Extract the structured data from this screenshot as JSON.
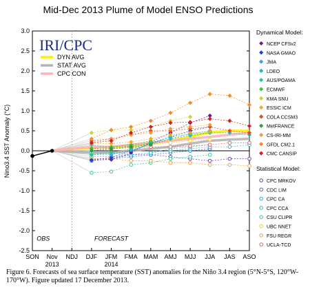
{
  "chart_data": {
    "type": "line",
    "title": "Mid-Dec 2013 Plume of Model ENSO Predictions",
    "ylabel": "Nino3.4 SST Anomaly (°C)",
    "logo": "IRI/CPC",
    "ylim": [
      -2.5,
      3.0
    ],
    "yticks": [
      "3.0",
      "2.5",
      "2.0",
      "1.5",
      "1.0",
      "0.5",
      "0.0",
      "-0.5",
      "-1.0",
      "-1.5",
      "-2.0",
      "-2.5"
    ],
    "grid": false,
    "categories": [
      "SON",
      "Nov",
      "NDJ",
      "DJF",
      "JFM",
      "FMA",
      "MAM",
      "AMJ",
      "MJJ",
      "JJA",
      "JAS",
      "ASO"
    ],
    "category_years": {
      "Nov": "2013",
      "JFM": "2014"
    },
    "region_labels": {
      "obs": "OBS",
      "forecast": "FORECAST"
    },
    "observed": [
      -0.13,
      0.0
    ],
    "averages": [
      {
        "name": "DYN AVG",
        "color": "#ffee00",
        "values": [
          0.08,
          0.08,
          0.12,
          0.18,
          0.25,
          0.35,
          0.46,
          0.5,
          0.5
        ]
      },
      {
        "name": "STAT AVG",
        "color": "#b3b3b3",
        "values": [
          -0.05,
          -0.05,
          0.0,
          0.05,
          0.1,
          0.18,
          0.25,
          0.28,
          0.3
        ]
      },
      {
        "name": "CPC CON",
        "color": "#ffb3b3",
        "values": [
          0.1,
          0.1,
          0.15,
          0.2,
          0.25,
          0.3,
          0.35,
          0.4,
          0.45
        ]
      }
    ],
    "dynamical_title": "Dynamical Model:",
    "statistical_title": "Statistical Model:",
    "dynamical_series": [
      {
        "name": "NCEP CFSv2",
        "color": "#6a1b9a",
        "values": [
          -0.23,
          -0.22,
          -0.05,
          0.22,
          0.45,
          0.7,
          0.88,
          null,
          null
        ]
      },
      {
        "name": "NASA GMAO",
        "color": "#1a3fd6",
        "values": [
          -0.23,
          -0.17,
          0.0,
          0.18,
          0.35,
          0.5,
          0.6,
          null,
          null
        ]
      },
      {
        "name": "JMA",
        "color": "#2fa4e7",
        "values": [
          -0.1,
          -0.1,
          0.02,
          0.15,
          0.3,
          0.42,
          0.5,
          null,
          null
        ]
      },
      {
        "name": "LDEO",
        "color": "#17b8d0",
        "values": [
          0.15,
          0.08,
          0.12,
          0.2,
          0.35,
          0.42,
          0.45,
          0.45,
          0.4
        ]
      },
      {
        "name": "AUS/POAMA",
        "color": "#18c9a6",
        "values": [
          -0.1,
          -0.05,
          0.05,
          0.2,
          0.3,
          0.38,
          0.45,
          null,
          null
        ]
      },
      {
        "name": "ECMWF",
        "color": "#37c837",
        "values": [
          0.05,
          0.1,
          0.15,
          0.25,
          null,
          null,
          null,
          null,
          null
        ]
      },
      {
        "name": "KMA SNU",
        "color": "#c8d62a",
        "values": [
          0.45,
          0.52,
          0.52,
          0.6,
          0.75,
          0.85,
          null,
          null,
          null
        ]
      },
      {
        "name": "ESSIC ICM",
        "color": "#f5a623",
        "values": [
          0.18,
          0.18,
          0.22,
          0.3,
          0.4,
          0.45,
          0.48,
          null,
          null
        ]
      },
      {
        "name": "COLA CCSM3",
        "color": "#e34a1a",
        "values": [
          0.25,
          0.3,
          0.4,
          0.5,
          0.5,
          0.55,
          0.6,
          0.5,
          0.45
        ]
      },
      {
        "name": "MetFRANCE",
        "color": "#2e9e2e",
        "values": [
          0.0,
          0.05,
          0.1,
          0.15,
          null,
          null,
          null,
          null,
          null
        ]
      },
      {
        "name": "CS-IRI-MM",
        "color": "#f09a3a",
        "values": [
          0.2,
          0.3,
          0.4,
          0.45,
          0.55,
          0.6,
          0.65,
          null,
          null
        ]
      },
      {
        "name": "GFDL CM2.1",
        "color": "#f28c28",
        "values": [
          0.3,
          0.52,
          0.6,
          0.75,
          0.95,
          1.2,
          1.42,
          1.38,
          1.15
        ]
      },
      {
        "name": "CMC CANSIP",
        "color": "#d62020",
        "values": [
          0.2,
          0.25,
          0.45,
          0.6,
          0.7,
          0.72,
          0.8,
          0.75,
          0.62
        ]
      }
    ],
    "statistical_series": [
      {
        "name": "CPC MRKOV",
        "color": "#6a3fb5",
        "values": [
          -0.2,
          -0.2,
          -0.1,
          -0.1,
          -0.15,
          -0.2,
          -0.25,
          -0.2,
          -0.2
        ]
      },
      {
        "name": "CDC LIM",
        "color": "#3a6be0",
        "values": [
          -0.25,
          -0.2,
          -0.15,
          -0.1,
          -0.05,
          0.0,
          0.05,
          null,
          null
        ]
      },
      {
        "name": "CPC CA",
        "color": "#2fb5e0",
        "values": [
          -0.05,
          -0.05,
          -0.1,
          -0.05,
          0.0,
          0.05,
          0.1,
          0.1,
          0.15
        ]
      },
      {
        "name": "CPC CCA",
        "color": "#22c0b0",
        "values": [
          -0.15,
          -0.15,
          -0.1,
          -0.05,
          0.05,
          0.1,
          0.15,
          null,
          null
        ]
      },
      {
        "name": "CSU CLIPR",
        "color": "#28d090",
        "values": [
          -0.55,
          -0.52,
          -0.35,
          -0.3,
          -0.2,
          -0.15,
          -0.1,
          null,
          null
        ]
      },
      {
        "name": "UBC NNET",
        "color": "#e0d040",
        "values": [
          -0.1,
          -0.05,
          0.05,
          0.15,
          0.2,
          0.25,
          0.28,
          null,
          null
        ]
      },
      {
        "name": "FSU REGR",
        "color": "#f0a040",
        "values": [
          -0.2,
          -0.2,
          -0.25,
          -0.25,
          -0.3,
          -0.3,
          -0.35,
          -0.35,
          -0.38
        ]
      },
      {
        "name": "UCLA-TCD",
        "color": "#f06060",
        "values": [
          0.05,
          0.05,
          0.08,
          0.1,
          0.1,
          0.12,
          0.15,
          0.2,
          0.2
        ]
      }
    ]
  },
  "caption": "Figure 6. Forecasts of sea surface temperature (SST) anomalies for the Niño 3.4 region (5°N-5°S, 120°W-170°W).  Figure updated 17 December 2013."
}
